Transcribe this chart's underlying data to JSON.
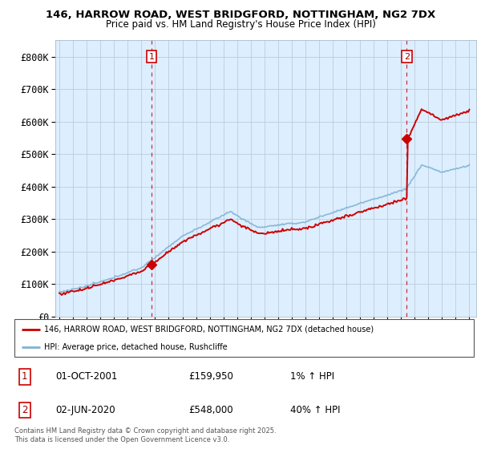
{
  "title1": "146, HARROW ROAD, WEST BRIDGFORD, NOTTINGHAM, NG2 7DX",
  "title2": "Price paid vs. HM Land Registry's House Price Index (HPI)",
  "ylim": [
    0,
    850000
  ],
  "yticks": [
    0,
    100000,
    200000,
    300000,
    400000,
    500000,
    600000,
    700000,
    800000
  ],
  "ytick_labels": [
    "£0",
    "£100K",
    "£200K",
    "£300K",
    "£400K",
    "£500K",
    "£600K",
    "£700K",
    "£800K"
  ],
  "xlim_start": 1994.7,
  "xlim_end": 2025.5,
  "sale1_x": 2001.75,
  "sale1_y": 159950,
  "sale2_x": 2020.42,
  "sale2_y": 548000,
  "sale1_label": "1",
  "sale2_label": "2",
  "vline_color": "#cc0000",
  "hpi_line_color": "#7fb3d3",
  "price_line_color": "#cc0000",
  "chart_bg_color": "#ddeeff",
  "legend_label1": "146, HARROW ROAD, WEST BRIDGFORD, NOTTINGHAM, NG2 7DX (detached house)",
  "legend_label2": "HPI: Average price, detached house, Rushcliffe",
  "table_row1": [
    "1",
    "01-OCT-2001",
    "£159,950",
    "1% ↑ HPI"
  ],
  "table_row2": [
    "2",
    "02-JUN-2020",
    "£548,000",
    "40% ↑ HPI"
  ],
  "footer": "Contains HM Land Registry data © Crown copyright and database right 2025.\nThis data is licensed under the Open Government Licence v3.0.",
  "bg_color": "#ffffff",
  "grid_color": "#bbccdd"
}
